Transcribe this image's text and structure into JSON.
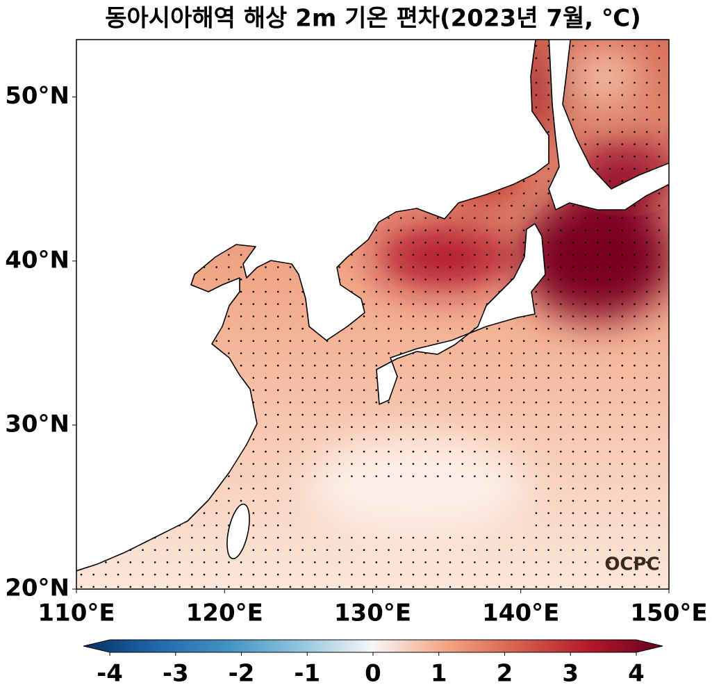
{
  "title": "동아시아해역 해상 2m 기온 편차(2023년 7월, ℃)",
  "map": {
    "xlim": [
      110,
      150
    ],
    "ylim": [
      20,
      53.5
    ],
    "xticks": [
      {
        "value": 110,
        "label": "110°E"
      },
      {
        "value": 120,
        "label": "120°E"
      },
      {
        "value": 130,
        "label": "130°E"
      },
      {
        "value": 140,
        "label": "140°E"
      },
      {
        "value": 150,
        "label": "150°E"
      }
    ],
    "yticks": [
      {
        "value": 20,
        "label": "20°N"
      },
      {
        "value": 30,
        "label": "30°N"
      },
      {
        "value": 40,
        "label": "40°N"
      },
      {
        "value": 50,
        "label": "50°N"
      }
    ]
  },
  "colorbar": {
    "lim": [
      -4,
      4
    ],
    "ticks": [
      -4,
      -3,
      -2,
      -1,
      0,
      1,
      2,
      3,
      4
    ]
  },
  "logo": "OCPC"
}
